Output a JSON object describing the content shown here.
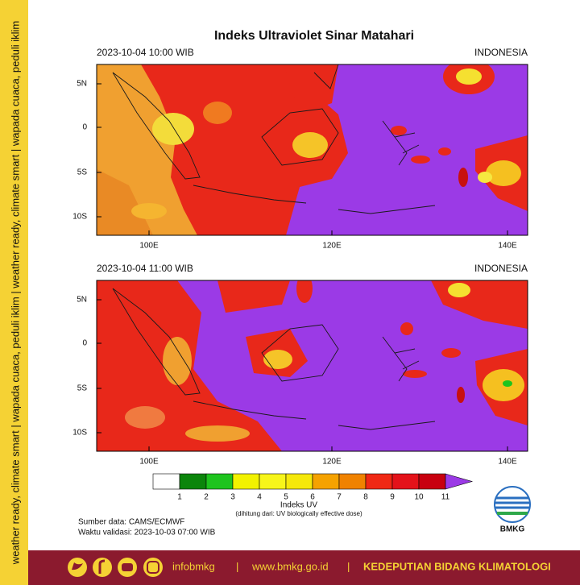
{
  "side_banner": "weather ready, climate smart | wapada cuaca, peduli iklim | weather ready, climate smart | wapada cuaca, peduli iklim",
  "title": "Indeks Ultraviolet Sinar Matahari",
  "panels": [
    {
      "time": "2023-10-04  10:00 WIB",
      "region": "INDONESIA"
    },
    {
      "time": "2023-10-04  11:00 WIB",
      "region": "INDONESIA"
    }
  ],
  "lat_labels": [
    "5N",
    "0",
    "5S",
    "10S"
  ],
  "lon_labels": [
    "100E",
    "120E",
    "140E"
  ],
  "colorbar": {
    "ticks": [
      1,
      2,
      3,
      4,
      5,
      6,
      7,
      8,
      9,
      10,
      11
    ],
    "colors": [
      "#ffffff",
      "#0b850b",
      "#1ec41e",
      "#f2f200",
      "#f7f51a",
      "#f5e80a",
      "#f5a200",
      "#f08200",
      "#f02814",
      "#e4121a",
      "#c8000f",
      "#9b3ae6"
    ],
    "label": "Indeks UV",
    "note": "(dihitung dari: UV biologically effective dose)"
  },
  "source": "Sumber data: CAMS/ECMWF",
  "validity": "Waktu validasi: 2023-10-03 07:00 WIB",
  "logo": "BMKG",
  "footer": {
    "handle": "infobmkg",
    "separator": "|",
    "website": "www.bmkg.go.id",
    "department": "KEDEPUTIAN BIDANG KLIMATOLOGI"
  }
}
